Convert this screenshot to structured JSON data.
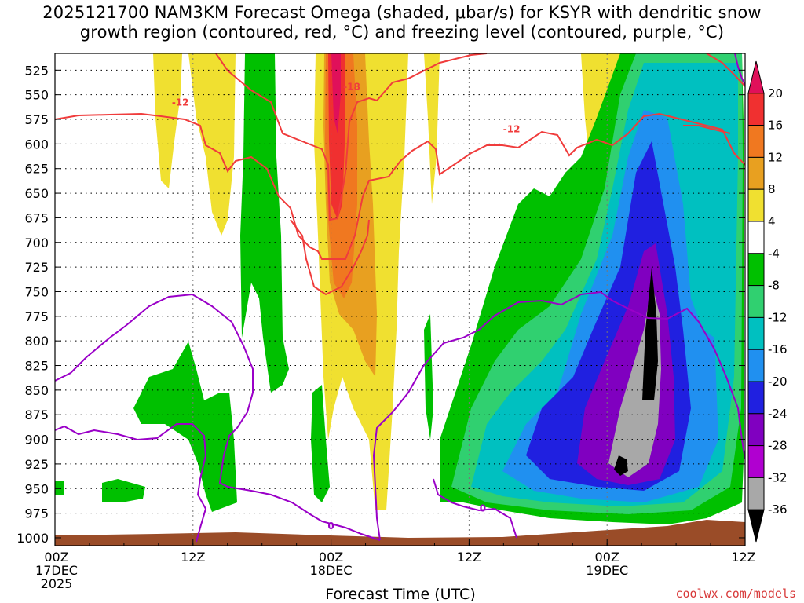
{
  "chart_data": {
    "type": "heatmap",
    "title_line1": "2025121700 NAM3KM Forecast Omega (shaded, μbar/s) for KSYR with dendritic snow",
    "title_line2": "growth region (contoured, red, °C) and freezing level (contoured, purple, °C)",
    "xlabel": "Forecast Time (UTC)",
    "ylabel": "",
    "x_ticks": [
      {
        "hour": 0,
        "line1": "00Z",
        "line2": "17DEC",
        "line3": "2025"
      },
      {
        "hour": 12,
        "line1": "12Z",
        "line2": "",
        "line3": ""
      },
      {
        "hour": 24,
        "line1": "00Z",
        "line2": "18DEC",
        "line3": ""
      },
      {
        "hour": 36,
        "line1": "12Z",
        "line2": "",
        "line3": ""
      },
      {
        "hour": 48,
        "line1": "00Z",
        "line2": "19DEC",
        "line3": ""
      },
      {
        "hour": 60,
        "line1": "12Z",
        "line2": "",
        "line3": ""
      }
    ],
    "xlim": [
      0,
      60
    ],
    "y_ticks": [
      525,
      550,
      575,
      600,
      625,
      650,
      675,
      700,
      725,
      750,
      775,
      800,
      825,
      850,
      875,
      900,
      925,
      950,
      975,
      1000
    ],
    "ylim": [
      508,
      1008
    ],
    "colorbar": {
      "labels": [
        "20",
        "16",
        "12",
        "8",
        "4",
        "-4",
        "-8",
        "-12",
        "-16",
        "-20",
        "-24",
        "-28",
        "-32",
        "-36"
      ],
      "levels": [
        20,
        16,
        12,
        8,
        4,
        -4,
        -8,
        -12,
        -16,
        -20,
        -24,
        -28,
        -32,
        -36
      ],
      "colors": [
        "#e0105a",
        "#f03030",
        "#f07820",
        "#e8a020",
        "#f0e030",
        "#ffffff",
        "#00c000",
        "#30d070",
        "#00c0c0",
        "#2090f0",
        "#2020e0",
        "#8000c0",
        "#b000d0",
        "#a8a8a8",
        "#000000"
      ]
    },
    "contours": [
      {
        "label": "-18",
        "color": "#f03c3c",
        "hour": 25.8,
        "pressure": 542
      },
      {
        "label": "-12",
        "color": "#f03c3c",
        "hour": 10.9,
        "pressure": 558
      },
      {
        "label": "-12",
        "color": "#f03c3c",
        "hour": 39.7,
        "pressure": 585
      },
      {
        "label": "0",
        "color": "#9a00c8",
        "hour": 24.0,
        "pressure": 988
      },
      {
        "label": "0",
        "color": "#9a00c8",
        "hour": 37.2,
        "pressure": 970
      }
    ],
    "credit": "coolwx.com/models"
  }
}
